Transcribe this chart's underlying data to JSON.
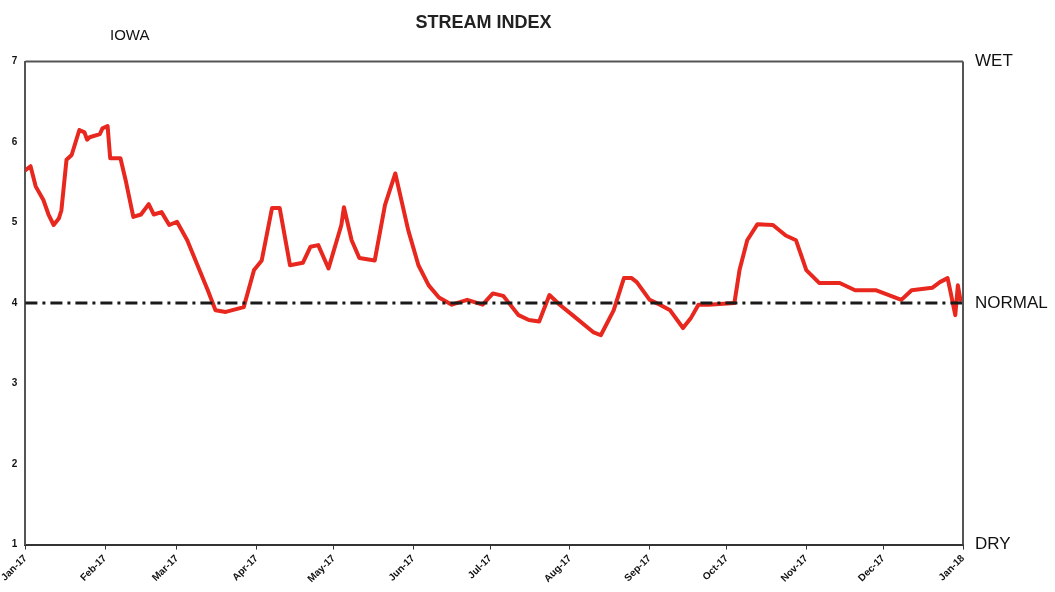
{
  "chart_data": {
    "type": "line",
    "title": "STREAM INDEX",
    "annotations": [
      "IOWA",
      "WET",
      "DRY"
    ],
    "x": [
      "2017-01-01",
      "2017-01-03",
      "2017-01-05",
      "2017-01-08",
      "2017-01-10",
      "2017-01-12",
      "2017-01-14",
      "2017-01-15",
      "2017-01-17",
      "2017-01-19",
      "2017-01-22",
      "2017-01-24",
      "2017-01-25",
      "2017-01-26",
      "2017-01-30",
      "2017-01-31",
      "2017-02-02",
      "2017-02-03",
      "2017-02-07",
      "2017-02-09",
      "2017-02-12",
      "2017-02-15",
      "2017-02-18",
      "2017-02-20",
      "2017-02-23",
      "2017-02-26",
      "2017-03-01",
      "2017-03-05",
      "2017-03-09",
      "2017-03-13",
      "2017-03-16",
      "2017-03-20",
      "2017-03-27",
      "2017-03-31",
      "2017-04-03",
      "2017-04-07",
      "2017-04-10",
      "2017-04-14",
      "2017-04-19",
      "2017-04-22",
      "2017-04-25",
      "2017-04-29",
      "2017-05-04",
      "2017-05-05",
      "2017-05-08",
      "2017-05-11",
      "2017-05-17",
      "2017-05-21",
      "2017-05-25",
      "2017-05-30",
      "2017-06-03",
      "2017-06-07",
      "2017-06-11",
      "2017-06-16",
      "2017-06-22",
      "2017-06-28",
      "2017-07-02",
      "2017-07-06",
      "2017-07-12",
      "2017-07-16",
      "2017-07-20",
      "2017-07-24",
      "2017-07-28",
      "2017-08-02",
      "2017-08-10",
      "2017-08-13",
      "2017-08-18",
      "2017-08-22",
      "2017-08-25",
      "2017-08-27",
      "2017-09-01",
      "2017-09-05",
      "2017-09-09",
      "2017-09-14",
      "2017-09-17",
      "2017-09-20",
      "2017-09-24",
      "2017-10-04",
      "2017-10-06",
      "2017-10-09",
      "2017-10-13",
      "2017-10-19",
      "2017-10-24",
      "2017-10-28",
      "2017-11-01",
      "2017-11-06",
      "2017-11-14",
      "2017-11-20",
      "2017-11-28",
      "2017-12-08",
      "2017-12-12",
      "2017-12-20",
      "2017-12-23",
      "2017-12-26",
      "2017-12-27",
      "2017-12-29",
      "2017-12-30",
      "2017-12-31"
    ],
    "series": [
      {
        "color": "#e8281e",
        "values": [
          5.65,
          5.7,
          5.45,
          5.28,
          5.1,
          4.97,
          5.05,
          5.15,
          5.78,
          5.84,
          6.15,
          6.12,
          6.03,
          6.06,
          6.1,
          6.17,
          6.2,
          5.8,
          5.8,
          5.53,
          5.07,
          5.1,
          5.23,
          5.1,
          5.13,
          4.97,
          5.01,
          4.78,
          4.47,
          4.16,
          3.91,
          3.89,
          3.95,
          4.41,
          4.53,
          5.18,
          5.18,
          4.47,
          4.5,
          4.7,
          4.72,
          4.43,
          4.97,
          5.19,
          4.78,
          4.56,
          4.53,
          5.22,
          5.61,
          4.91,
          4.47,
          4.22,
          4.07,
          3.98,
          4.04,
          3.98,
          4.12,
          4.09,
          3.85,
          3.79,
          3.77,
          4.1,
          3.98,
          3.85,
          3.64,
          3.6,
          3.91,
          4.31,
          4.31,
          4.26,
          4.04,
          3.98,
          3.91,
          3.69,
          3.81,
          3.98,
          3.98,
          4.0,
          4.41,
          4.78,
          4.98,
          4.97,
          4.84,
          4.78,
          4.41,
          4.25,
          4.25,
          4.16,
          4.16,
          4.04,
          4.16,
          4.19,
          4.26,
          4.31,
          4.16,
          3.85,
          4.22,
          4.04
        ]
      }
    ],
    "xlim": [
      "2017-01-01",
      "2018-01-01"
    ],
    "xticks": [
      {
        "value": "2017-01-01",
        "label": "Jan-17"
      },
      {
        "value": "2017-02-01",
        "label": "Feb-17"
      },
      {
        "value": "2017-03-01",
        "label": "Mar-17"
      },
      {
        "value": "2017-04-01",
        "label": "Apr-17"
      },
      {
        "value": "2017-05-01",
        "label": "May-17"
      },
      {
        "value": "2017-06-01",
        "label": "Jun-17"
      },
      {
        "value": "2017-07-01",
        "label": "Jul-17"
      },
      {
        "value": "2017-08-01",
        "label": "Aug-17"
      },
      {
        "value": "2017-09-01",
        "label": "Sep-17"
      },
      {
        "value": "2017-10-01",
        "label": "Oct-17"
      },
      {
        "value": "2017-11-01",
        "label": "Nov-17"
      },
      {
        "value": "2017-12-01",
        "label": "Dec-17"
      },
      {
        "value": "2018-01-01",
        "label": "Jan-18"
      }
    ],
    "ylim": [
      1,
      7
    ],
    "yticks": [
      1,
      2,
      3,
      4,
      5,
      6,
      7
    ],
    "ref_lines": [
      {
        "axis": "y",
        "value": 4,
        "label": "NORMAL",
        "color": "#1a1a1a",
        "line_style": "dashdot"
      }
    ],
    "grid": false,
    "legend": false,
    "marker": "none",
    "line_style": "solid"
  }
}
